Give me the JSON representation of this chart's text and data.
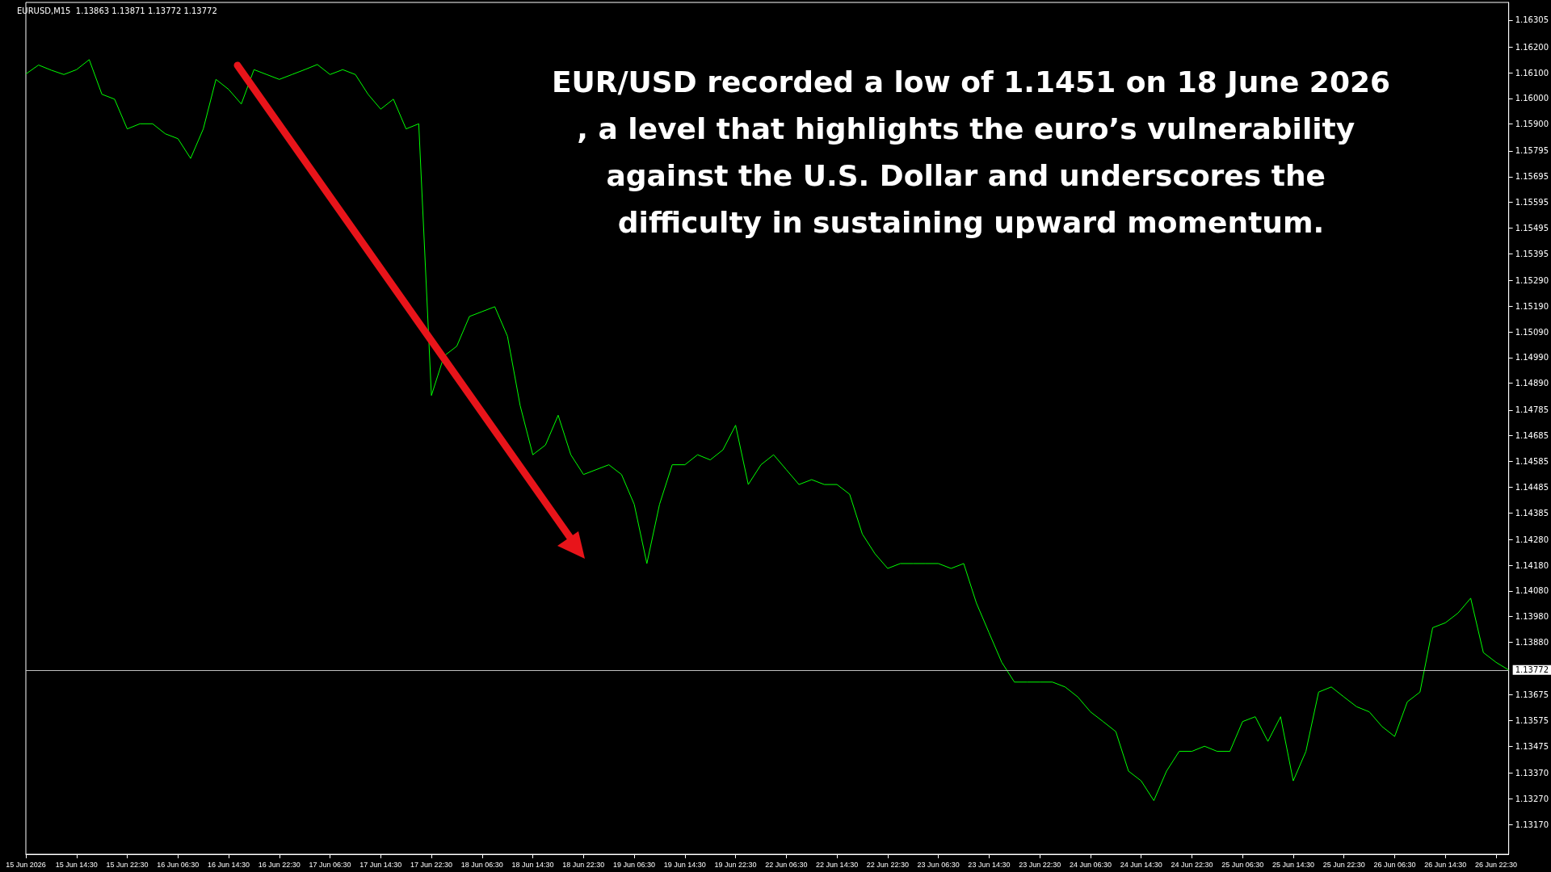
{
  "chart_data": {
    "type": "line",
    "title": "EURUSD,M15  1.13863 1.13871 1.13772 1.13772",
    "annotations": [
      "EUR/USD recorded a low of 1.1451 on 18 June 2026, a level that highlights the euro’s vulnerability against the U.S. Dollar and underscores the difficulty in sustaining upward momentum."
    ],
    "categories": [
      "15 Jun 2026",
      null,
      null,
      null,
      "15 Jun 14:30",
      null,
      null,
      null,
      "15 Jun 22:30",
      null,
      null,
      null,
      "16 Jun 06:30",
      null,
      null,
      null,
      "16 Jun 14:30",
      null,
      null,
      null,
      "16 Jun 22:30",
      null,
      null,
      null,
      "17 Jun 06:30",
      null,
      null,
      null,
      "17 Jun 14:30",
      null,
      null,
      null,
      "17 Jun 22:30",
      null,
      null,
      null,
      "18 Jun 06:30",
      null,
      null,
      null,
      "18 Jun 14:30",
      null,
      null,
      null,
      "18 Jun 22:30",
      null,
      null,
      null,
      "19 Jun 06:30",
      null,
      null,
      null,
      "19 Jun 14:30",
      null,
      null,
      null,
      "19 Jun 22:30",
      null,
      null,
      null,
      "22 Jun 06:30",
      null,
      null,
      null,
      "22 Jun 14:30",
      null,
      null,
      null,
      "22 Jun 22:30",
      null,
      null,
      null,
      "23 Jun 06:30",
      null,
      null,
      null,
      "23 Jun 14:30",
      null,
      null,
      null,
      "23 Jun 22:30",
      null,
      null,
      null,
      "24 Jun 06:30",
      null,
      null,
      null,
      "24 Jun 14:30",
      null,
      null,
      null,
      "24 Jun 22:30",
      null,
      null,
      null,
      "25 Jun 06:30",
      null,
      null,
      null,
      "25 Jun 14:30",
      null,
      null,
      null,
      "25 Jun 22:30",
      null,
      null,
      null,
      "26 Jun 06:30",
      null,
      null,
      null,
      "26 Jun 14:30",
      null,
      null,
      null,
      "26 Jun 22:30",
      null
    ],
    "series": [
      {
        "color": "#00ff00",
        "values": [
          1.16095,
          1.1613,
          1.1611,
          1.16093,
          1.16112,
          1.16151,
          1.16016,
          1.15997,
          1.15881,
          1.15901,
          1.15901,
          1.15862,
          1.15843,
          1.15766,
          1.15881,
          1.16074,
          1.16035,
          1.15978,
          1.16112,
          1.16093,
          1.16074,
          1.16093,
          1.16112,
          1.16132,
          1.16093,
          1.16112,
          1.16093,
          1.16016,
          1.15958,
          1.15997,
          1.15881,
          1.15901,
          1.14842,
          1.14996,
          1.15034,
          1.1515,
          1.15169,
          1.15188,
          1.15073,
          1.14803,
          1.14611,
          1.14649,
          1.14765,
          1.14611,
          1.14534,
          1.14553,
          1.14572,
          1.14534,
          1.14418,
          1.14187,
          1.14418,
          1.14572,
          1.14572,
          1.14611,
          1.14591,
          1.1463,
          1.14726,
          1.14495,
          1.14572,
          1.14611,
          1.14553,
          1.14495,
          1.14514,
          1.14495,
          1.14495,
          1.14457,
          1.14302,
          1.14225,
          1.14168,
          1.14187,
          1.14187,
          1.14187,
          1.14187,
          1.14168,
          1.14187,
          1.14033,
          1.13917,
          1.13802,
          1.13725,
          1.13725,
          1.13725,
          1.13725,
          1.13706,
          1.13667,
          1.13609,
          1.13571,
          1.13532,
          1.13378,
          1.1334,
          1.13263,
          1.13378,
          1.13455,
          1.13455,
          1.13475,
          1.13455,
          1.13455,
          1.13571,
          1.1359,
          1.13494,
          1.1359,
          1.1334,
          1.13455,
          1.13686,
          1.13706,
          1.13667,
          1.13629,
          1.13609,
          1.13552,
          1.13513,
          1.13648,
          1.13686,
          1.13937,
          1.13956,
          1.13994,
          1.14052,
          1.1384,
          1.13802,
          1.13772
        ]
      }
    ],
    "ylim": [
      1.13054,
      1.16374
    ],
    "yticks": [
      1.16305,
      {
        "value": 1.162,
        "label": "1.16200"
      },
      {
        "value": 1.161,
        "label": "1.16100"
      },
      {
        "value": 1.16,
        "label": "1.16000"
      },
      {
        "value": 1.159,
        "label": "1.15900"
      },
      1.15795,
      1.15695,
      1.15595,
      1.15495,
      1.15395,
      {
        "value": 1.1529,
        "label": "1.15290"
      },
      {
        "value": 1.1519,
        "label": "1.15190"
      },
      {
        "value": 1.1509,
        "label": "1.15090"
      },
      {
        "value": 1.1499,
        "label": "1.14990"
      },
      {
        "value": 1.1489,
        "label": "1.14890"
      },
      1.14785,
      1.14685,
      1.14585,
      1.14485,
      1.14385,
      {
        "value": 1.1428,
        "label": "1.14280"
      },
      {
        "value": 1.1418,
        "label": "1.14180"
      },
      {
        "value": 1.1408,
        "label": "1.14080"
      },
      {
        "value": 1.1398,
        "label": "1.13980"
      },
      {
        "value": 1.1388,
        "label": "1.13880"
      },
      1.13675,
      1.13575,
      1.13475,
      {
        "value": 1.1337,
        "label": "1.13370"
      },
      {
        "value": 1.1327,
        "label": "1.13270"
      },
      {
        "value": 1.1317,
        "label": "1.13170"
      }
    ],
    "ref_lines": [
      {
        "axis": "y",
        "value": 1.13772,
        "label": "1.13772",
        "color": "#c0c0c0"
      }
    ]
  }
}
